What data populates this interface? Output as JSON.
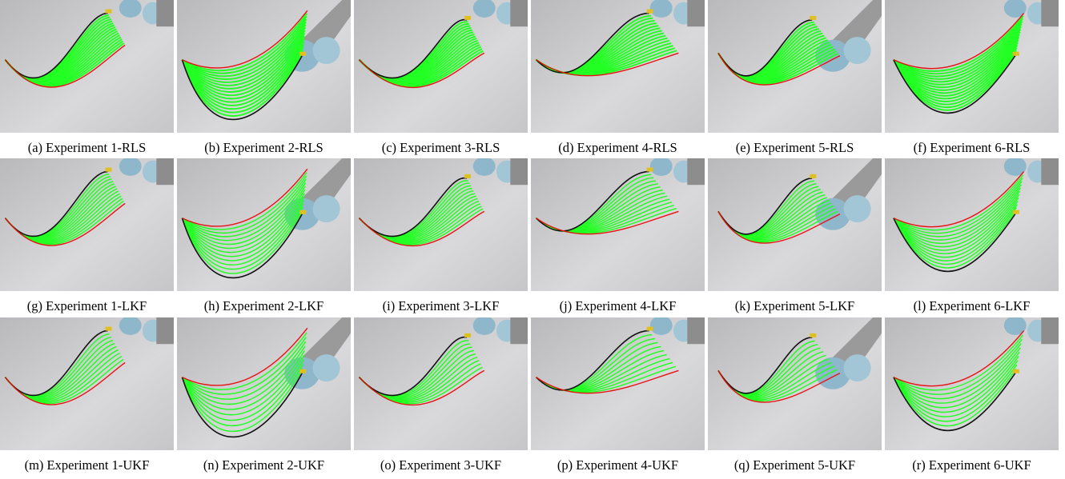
{
  "figure": {
    "captions": [
      [
        "(a) Experiment 1-RLS",
        "(b) Experiment 2-RLS",
        "(c) Experiment 3-RLS",
        "(d) Experiment 4-RLS",
        "(e) Experiment 5-RLS",
        "(f) Experiment 6-RLS"
      ],
      [
        "(g) Experiment 1-LKF",
        "(h) Experiment 2-LKF",
        "(i) Experiment 3-LKF",
        "(j) Experiment 4-LKF",
        "(k) Experiment 5-LKF",
        "(l) Experiment 6-LKF"
      ],
      [
        "(m) Experiment 1-UKF",
        "(n) Experiment 2-UKF",
        "(o) Experiment 3-UKF",
        "(p) Experiment 4-UKF",
        "(q) Experiment 5-UKF",
        "(r) Experiment 6-UKF"
      ]
    ]
  }
}
